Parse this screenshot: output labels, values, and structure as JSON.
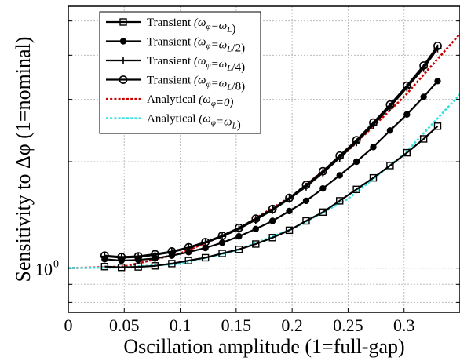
{
  "chart_data": {
    "type": "line",
    "title": "",
    "xlabel": "Oscillation amplitude (1=full-gap)",
    "ylabel": "Sensitivity to Δφ (1=nominal)",
    "xlim": [
      0,
      0.35
    ],
    "ylim": [
      0.75,
      5.5
    ],
    "yscale": "log",
    "grid": true,
    "legend_position": "top-left",
    "x_ticks": [
      0,
      0.05,
      0.1,
      0.15,
      0.2,
      0.25,
      0.3
    ],
    "x_tick_labels": [
      "0",
      "0.05",
      "0.1",
      "0.15",
      "0.2",
      "0.25",
      "0.3"
    ],
    "y_ticks": [
      1
    ],
    "y_tick_labels": [
      "10^0"
    ],
    "y_tick_base": "10",
    "y_tick_exp": "0",
    "x": [
      0.0325,
      0.0475,
      0.0625,
      0.0775,
      0.0925,
      0.1075,
      0.1225,
      0.1375,
      0.1525,
      0.1675,
      0.1825,
      0.1975,
      0.2125,
      0.2275,
      0.2425,
      0.2575,
      0.2725,
      0.2875,
      0.3025,
      0.3175,
      0.33
    ],
    "series": [
      {
        "name": "Transient (ω_φ=ω_L)",
        "name_main": "Transient",
        "math": {
          "pre": "(ω",
          "sub": "φ",
          "mid": "=ω",
          "sub2": "L",
          "post": ")"
        },
        "color": "#000000",
        "marker": "square",
        "line_style": "solid",
        "values": [
          1.01,
          1.005,
          1.008,
          1.015,
          1.03,
          1.05,
          1.07,
          1.1,
          1.13,
          1.17,
          1.22,
          1.28,
          1.36,
          1.44,
          1.55,
          1.67,
          1.8,
          1.95,
          2.12,
          2.32,
          2.52
        ]
      },
      {
        "name": "Transient (ω_φ=ω_L/2)",
        "name_main": "Transient",
        "math": {
          "pre": "(ω",
          "sub": "φ",
          "mid": "=ω",
          "sub2": "L",
          "post": "/2)"
        },
        "color": "#000000",
        "marker": "dot",
        "line_style": "solid",
        "values": [
          1.06,
          1.05,
          1.055,
          1.065,
          1.085,
          1.11,
          1.14,
          1.18,
          1.23,
          1.29,
          1.36,
          1.45,
          1.55,
          1.68,
          1.83,
          2.0,
          2.2,
          2.45,
          2.72,
          3.05,
          3.38
        ]
      },
      {
        "name": "Transient (ω_φ=ω_L/4)",
        "name_main": "Transient",
        "math": {
          "pre": "(ω",
          "sub": "φ",
          "mid": "=ω",
          "sub2": "L",
          "post": "/4)"
        },
        "color": "#000000",
        "marker": "plus",
        "line_style": "solid",
        "values": [
          1.08,
          1.07,
          1.075,
          1.09,
          1.11,
          1.14,
          1.18,
          1.23,
          1.29,
          1.37,
          1.46,
          1.57,
          1.7,
          1.86,
          2.05,
          2.27,
          2.54,
          2.86,
          3.24,
          3.68,
          4.18
        ]
      },
      {
        "name": "Transient (ω_φ=ω_L/8)",
        "name_main": "Transient",
        "math": {
          "pre": "(ω",
          "sub": "φ",
          "mid": "=ω",
          "sub2": "L",
          "post": "/8)"
        },
        "color": "#000000",
        "marker": "circle",
        "line_style": "solid",
        "values": [
          1.085,
          1.075,
          1.08,
          1.095,
          1.115,
          1.145,
          1.185,
          1.235,
          1.3,
          1.38,
          1.47,
          1.58,
          1.72,
          1.88,
          2.08,
          2.3,
          2.58,
          2.9,
          3.28,
          3.74,
          4.25
        ]
      },
      {
        "name": "Analytical (ω_φ=0)",
        "name_main": "Analytical",
        "math": {
          "pre": "(ω",
          "sub": "φ",
          "mid": "=0)",
          "sub2": "",
          "post": ""
        },
        "color": "#cc0000",
        "marker": "none",
        "line_style": "dotted",
        "x": [
          0,
          0.05,
          0.1,
          0.15,
          0.2,
          0.25,
          0.3,
          0.35
        ],
        "values": [
          1.0,
          1.01,
          1.1,
          1.28,
          1.6,
          2.15,
          3.05,
          4.6
        ]
      },
      {
        "name": "Analytical (ω_φ=ω_L)",
        "name_main": "Analytical",
        "math": {
          "pre": "(ω",
          "sub": "φ",
          "mid": "=ω",
          "sub2": "L",
          "post": ")"
        },
        "color": "#33e0e0",
        "marker": "none",
        "line_style": "dotted",
        "x": [
          0,
          0.05,
          0.1,
          0.15,
          0.2,
          0.25,
          0.3,
          0.35
        ],
        "values": [
          1.0,
          1.005,
          1.03,
          1.12,
          1.29,
          1.57,
          2.1,
          3.1
        ]
      }
    ]
  }
}
